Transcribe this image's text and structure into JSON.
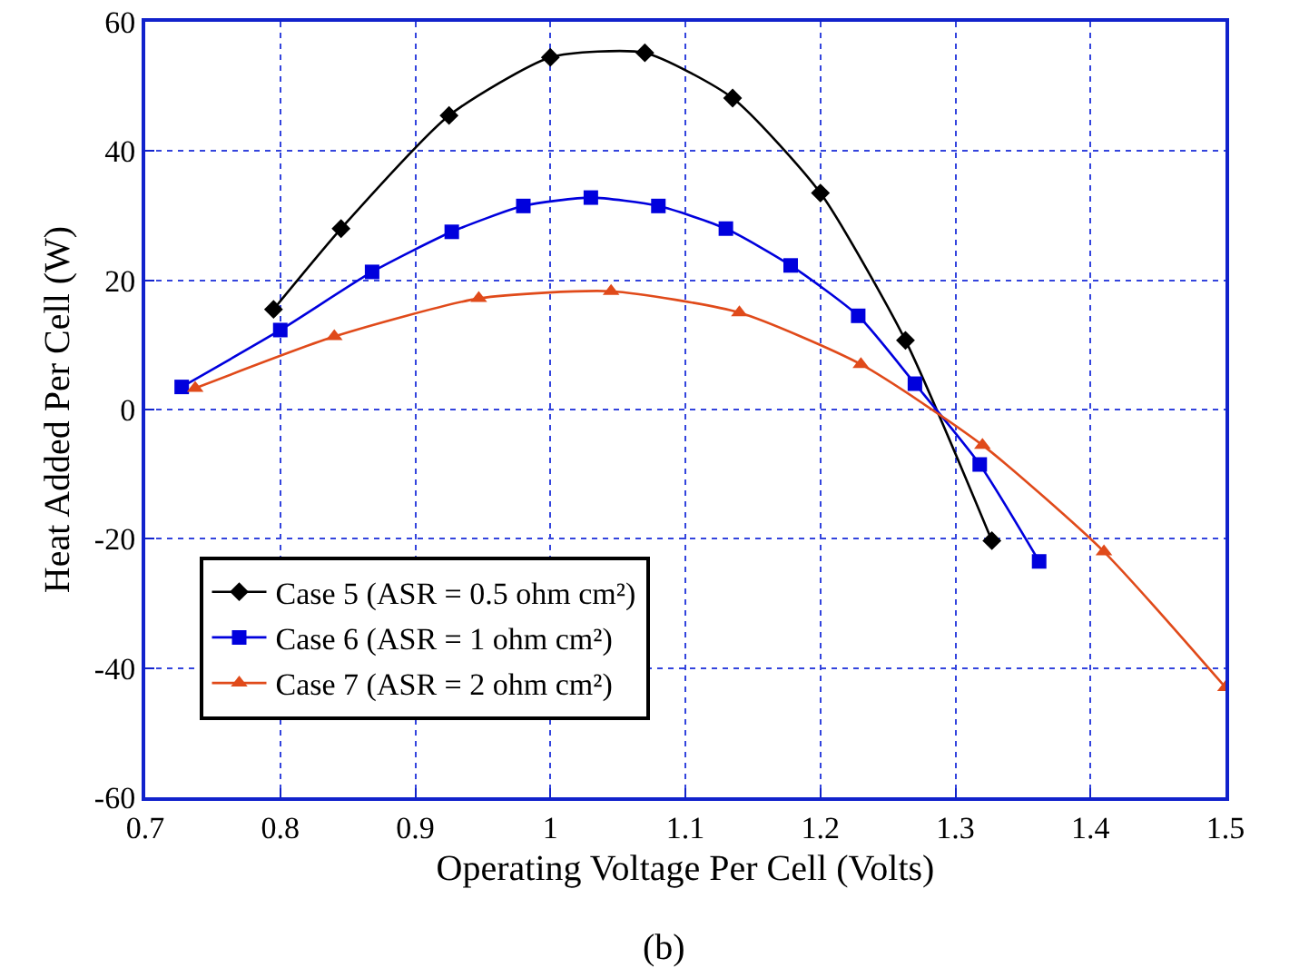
{
  "chart_data": {
    "type": "line",
    "xlabel": "Operating Voltage Per Cell (Volts)",
    "ylabel": "Heat Added Per Cell (W)",
    "annotations": [
      "(b)"
    ],
    "xlim": [
      0.7,
      1.5
    ],
    "xticks": [
      0.7,
      0.8,
      0.9,
      1,
      1.1,
      1.2,
      1.3,
      1.4,
      1.5
    ],
    "ylim": [
      -60,
      60
    ],
    "yticks": [
      -60,
      -40,
      -20,
      0,
      20,
      40,
      60
    ],
    "grid": true,
    "legend": "bottom left",
    "line_style": "solid",
    "series": [
      {
        "name": "Case 5 (ASR = 0.5 ohm cm²)",
        "color": "#000000",
        "marker": "diamond",
        "x": [
          0.795,
          0.845,
          0.925,
          1.0,
          1.07,
          1.135,
          1.2,
          1.263,
          1.327
        ],
        "values": [
          15.5,
          28,
          45.5,
          54.5,
          55.2,
          48.2,
          33.5,
          10.7,
          -20.3
        ]
      },
      {
        "name": "Case 6 (ASR = 1 ohm cm²)",
        "color": "#0000dd",
        "marker": "square",
        "x": [
          0.727,
          0.8,
          0.868,
          0.927,
          0.98,
          1.03,
          1.08,
          1.13,
          1.178,
          1.228,
          1.27,
          1.318,
          1.362
        ],
        "values": [
          3.5,
          12.3,
          21.3,
          27.5,
          31.5,
          32.8,
          31.5,
          28,
          22.3,
          14.5,
          4,
          -8.5,
          -23.5
        ]
      },
      {
        "name": "Case 7 (ASR = 2 ohm cm²)",
        "color": "#e04a1a",
        "marker": "triangle",
        "x": [
          0.737,
          0.84,
          0.947,
          1.045,
          1.14,
          1.23,
          1.32,
          1.41,
          1.5
        ],
        "values": [
          3.3,
          11.3,
          17.2,
          18.3,
          15,
          7,
          -5.5,
          -22,
          -43
        ]
      }
    ]
  }
}
